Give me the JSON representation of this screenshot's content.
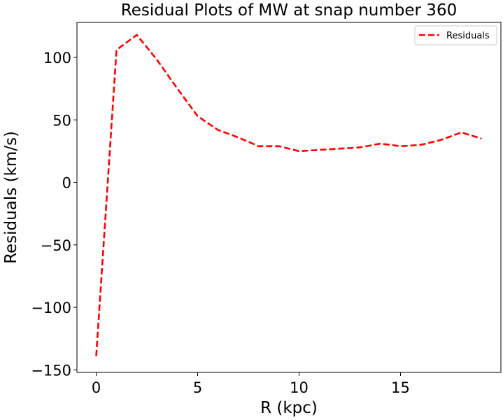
{
  "chart_data": {
    "type": "line",
    "title": "Residual Plots of MW at snap number 360",
    "xlabel": "R (kpc)",
    "ylabel": "Residuals (km/s)",
    "xlim": [
      -0.95,
      19.95
    ],
    "ylim": [
      -152,
      128
    ],
    "xticks": [
      0,
      5,
      10,
      15
    ],
    "xtick_labels": [
      "0",
      "5",
      "10",
      "15"
    ],
    "yticks": [
      -150,
      -100,
      -50,
      0,
      50,
      100
    ],
    "ytick_labels": [
      "−150",
      "−100",
      "−50",
      "0",
      "50",
      "100"
    ],
    "grid": false,
    "legend_position": "top-right",
    "series": [
      {
        "name": "Residuals",
        "color": "#ff0000",
        "linestyle": "dashed",
        "x": [
          0,
          1,
          2,
          3,
          4,
          5,
          6,
          7,
          8,
          9,
          10,
          11,
          12,
          13,
          14,
          15,
          16,
          17,
          18,
          19
        ],
        "y": [
          -139,
          106,
          118,
          98,
          75,
          53,
          42,
          36,
          29,
          29,
          25,
          26,
          27,
          28,
          31,
          29,
          30,
          34,
          40,
          35
        ]
      }
    ]
  }
}
